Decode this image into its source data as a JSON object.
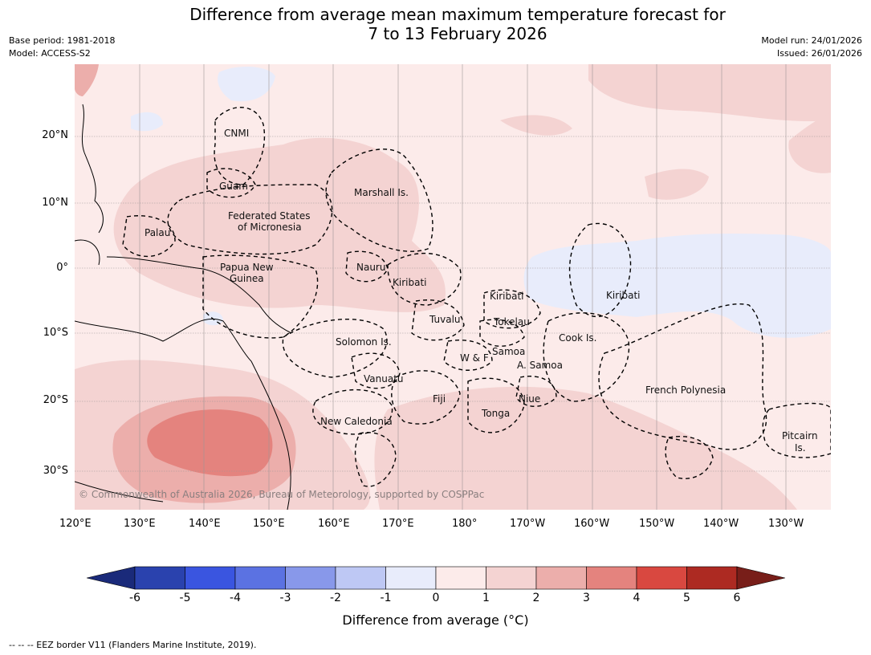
{
  "title_line1": "Difference from average mean maximum temperature forecast for",
  "title_line2": "7 to 13 February 2026",
  "meta_left": {
    "base_period": "Base period: 1981-2018",
    "model": "Model: ACCESS-S2"
  },
  "meta_right": {
    "model_run": "Model run: 24/01/2026",
    "issued": "Issued: 26/01/2026"
  },
  "lat_labels": [
    "20°N",
    "10°N",
    "0°",
    "10°S",
    "20°S",
    "30°S"
  ],
  "lon_labels": [
    "120°E",
    "130°E",
    "140°E",
    "150°E",
    "160°E",
    "170°E",
    "180°",
    "170°W",
    "160°W",
    "150°W",
    "140°W",
    "130°W"
  ],
  "places": {
    "cnmi": "CNMI",
    "guam": "Guam",
    "marshall": "Marshall Is.",
    "fsm1": "Federated States",
    "fsm2": "of Micronesia",
    "palau": "Palau",
    "png1": "Papua New",
    "png2": "Guinea",
    "nauru": "Nauru",
    "kiribati_w": "Kiribati",
    "kiribati_c": "Kiribati",
    "kiribati_e": "Kiribati",
    "tuvalu": "Tuvalu",
    "tokelau": "Tokelau",
    "cook": "Cook Is.",
    "solomon": "Solomon Is.",
    "wf": "W & F",
    "samoa": "Samoa",
    "asamoa": "A. Samoa",
    "vanuatu": "Vanuatu",
    "fiji": "Fiji",
    "niue": "Niue",
    "tonga": "Tonga",
    "french_poly": "French Polynesia",
    "newcal": "New Caledonia",
    "pitcairn1": "Pitcairn",
    "pitcairn2": "Is."
  },
  "copyright": "© Commonwealth of Australia 2026, Bureau of Meteorology, supported by COSPPac",
  "colorbar": {
    "ticks": [
      "-6",
      "-5",
      "-4",
      "-3",
      "-2",
      "-1",
      "0",
      "1",
      "2",
      "3",
      "4",
      "5",
      "6"
    ],
    "colors": [
      "#2a42ae",
      "#3a55e0",
      "#5b72e2",
      "#8898ea",
      "#bec8f4",
      "#e8ecfb",
      "#fcebea",
      "#f4d3d2",
      "#ecaeab",
      "#e4837e",
      "#d94840",
      "#ad2a22"
    ],
    "under_color": "#1a2a7a",
    "over_color": "#781e19",
    "label": "Difference from average (°C)"
  },
  "eez_note": "-- -- -- EEZ border V11 (Flanders Marine Institute, 2019)."
}
